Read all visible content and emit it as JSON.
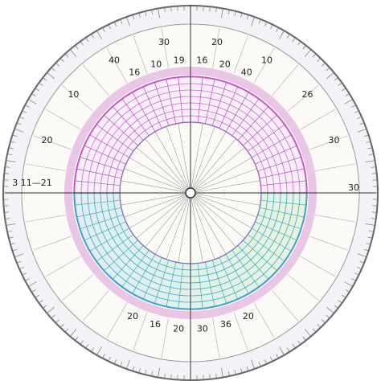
{
  "dial": {
    "top_labels": [
      "16",
      "10",
      "19",
      "16",
      "20",
      "40"
    ],
    "bottom_labels": [
      "20",
      "16",
      "20",
      "30",
      "36",
      "20"
    ],
    "left_label": "3 11—21",
    "right_label": "30",
    "ring_labels": [
      "20",
      "10",
      "40",
      "30",
      "20",
      "10",
      "26",
      "30"
    ]
  }
}
